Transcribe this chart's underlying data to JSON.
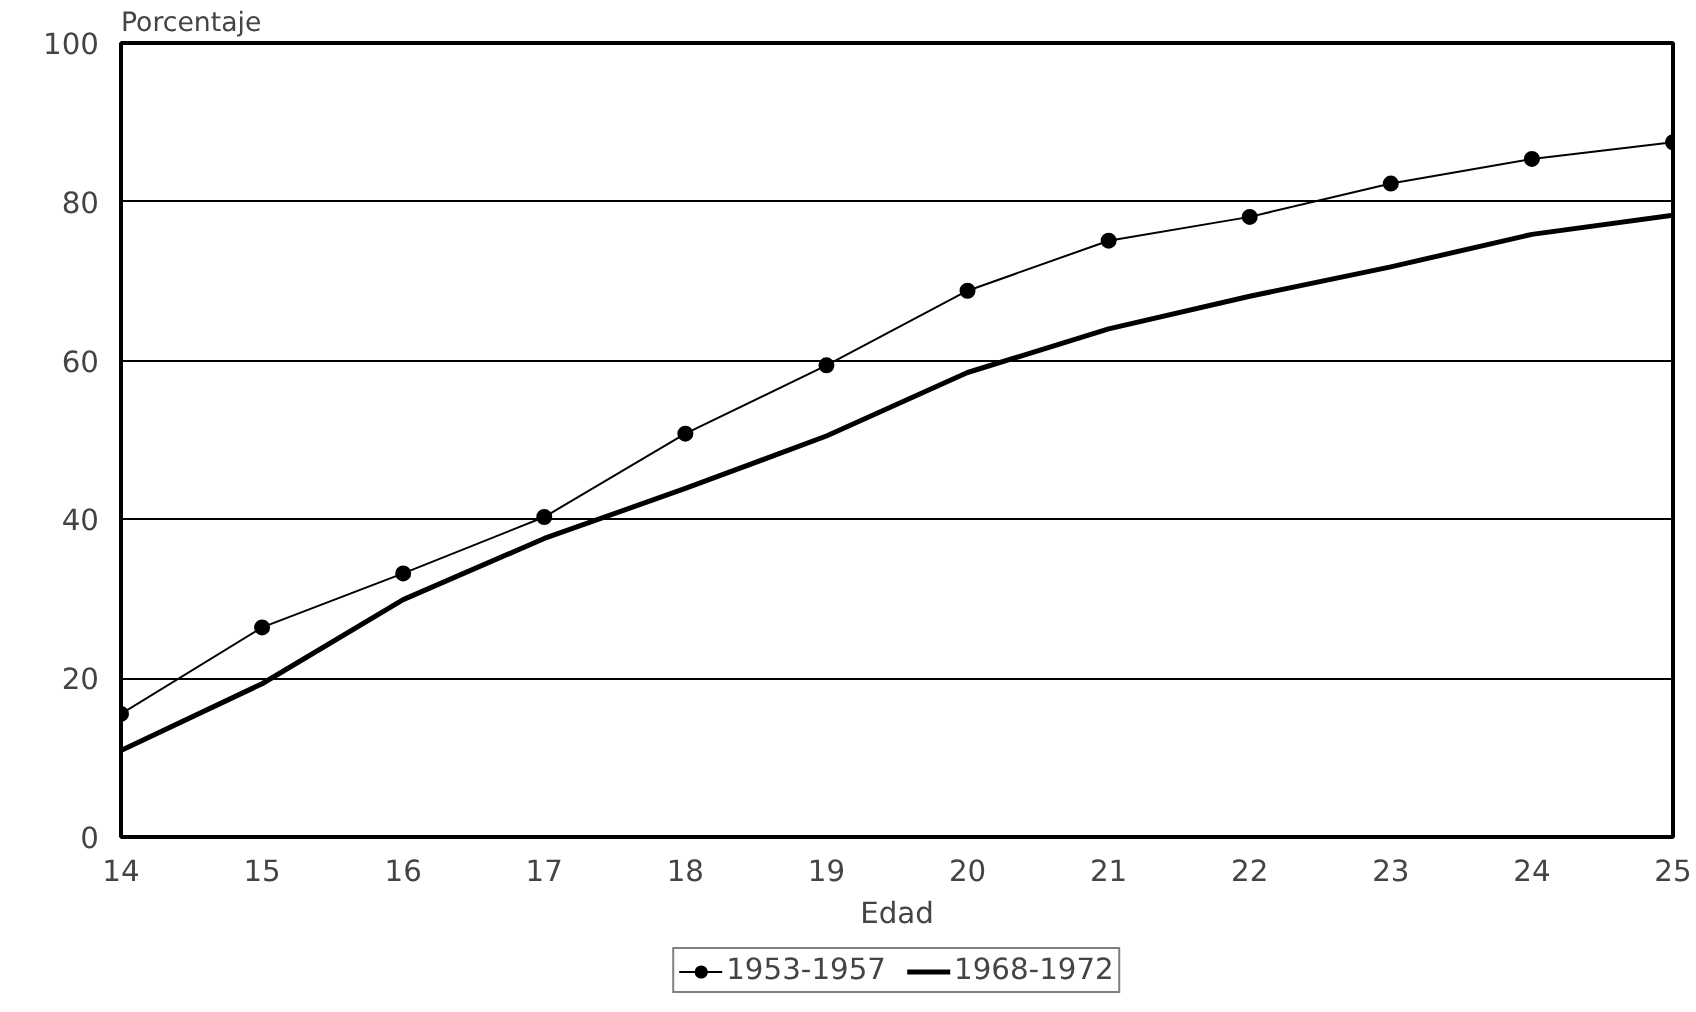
{
  "chart_data": {
    "type": "line",
    "xlabel": "Edad",
    "ylabel": "Porcentaje",
    "x": [
      14,
      15,
      16,
      17,
      18,
      19,
      20,
      21,
      22,
      23,
      24,
      25
    ],
    "xlim": [
      14,
      25
    ],
    "xticks": [
      14,
      15,
      16,
      17,
      18,
      19,
      20,
      21,
      22,
      23,
      24,
      25
    ],
    "ylim": [
      0,
      100
    ],
    "yticks": [
      0,
      20,
      40,
      60,
      80,
      100
    ],
    "grid": "y",
    "legend": "bottom",
    "series": [
      {
        "name": "1953-1957",
        "color": "#000000",
        "marker": "circle",
        "values": [
          15.5,
          26.4,
          33.2,
          40.3,
          50.8,
          59.4,
          68.8,
          75.1,
          78.1,
          82.3,
          85.4,
          87.5
        ]
      },
      {
        "name": "1968-1972",
        "color": "#000000",
        "marker": "none",
        "values": [
          10.9,
          19.3,
          29.9,
          37.6,
          43.9,
          50.5,
          58.5,
          64.0,
          68.1,
          71.8,
          75.9,
          78.3
        ]
      }
    ]
  }
}
